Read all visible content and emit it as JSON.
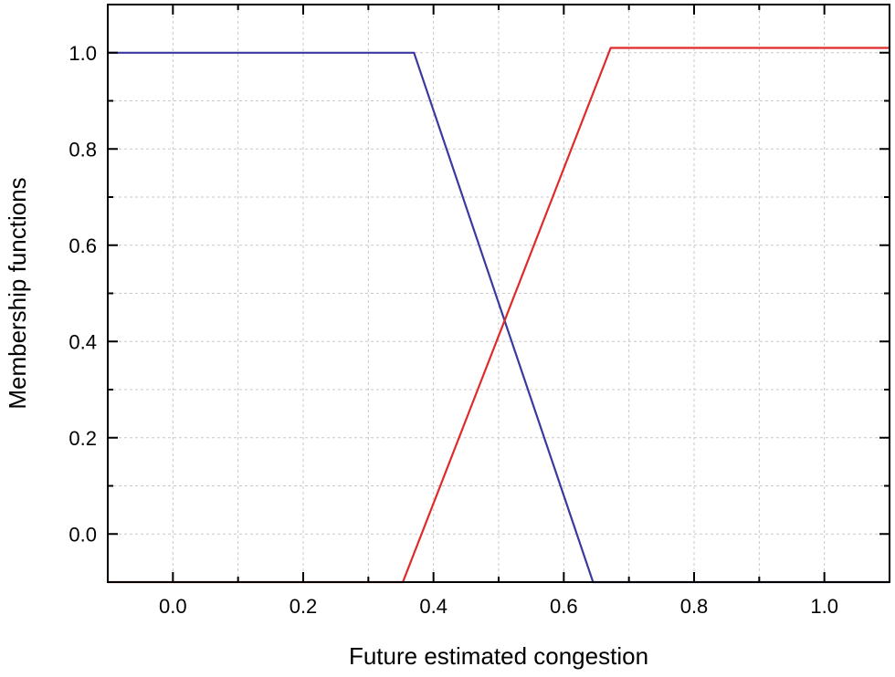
{
  "chart_data": {
    "type": "line",
    "title": "",
    "xlabel": "Future estimated congestion",
    "ylabel": "Membership functions",
    "xlim": [
      -0.1,
      1.1
    ],
    "ylim": [
      -0.1,
      1.1
    ],
    "grid": true,
    "legend": "none",
    "x_ticks": [
      0.0,
      0.2,
      0.4,
      0.6,
      0.8,
      1.0
    ],
    "x_tick_labels": [
      "0.0",
      "0.2",
      "0.4",
      "0.6",
      "0.8",
      "1.0"
    ],
    "y_ticks": [
      0.0,
      0.2,
      0.4,
      0.6,
      0.8,
      1.0
    ],
    "y_tick_labels": [
      "0.0",
      "0.2",
      "0.4",
      "0.6",
      "0.8",
      "1.0"
    ],
    "series": [
      {
        "color": "#3a3a9e",
        "points": [
          [
            -0.1,
            1.0
          ],
          [
            0.37,
            1.0
          ],
          [
            0.645,
            -0.1
          ],
          [
            1.1,
            -0.1
          ]
        ]
      },
      {
        "color": "#e02a2a",
        "points": [
          [
            -0.1,
            -0.1
          ],
          [
            0.353,
            -0.1
          ],
          [
            0.672,
            1.01
          ],
          [
            1.1,
            1.01
          ]
        ]
      }
    ]
  }
}
